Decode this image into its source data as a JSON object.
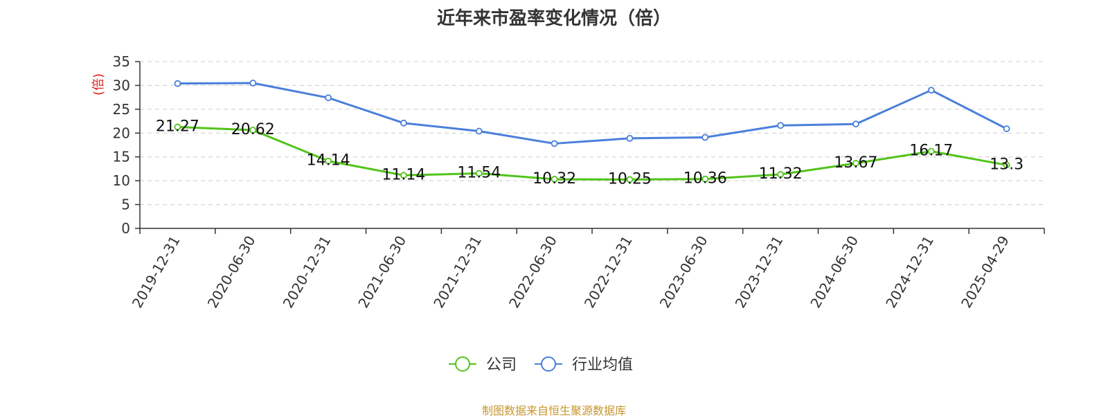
{
  "chart_data": {
    "type": "line",
    "title": "近年来市盈率变化情况（倍）",
    "ylabel": "(倍)",
    "xlabel": "",
    "ylim": [
      0,
      35
    ],
    "yticks": [
      0,
      5,
      10,
      15,
      20,
      25,
      30,
      35
    ],
    "grid": true,
    "legend_position": "bottom",
    "categories": [
      "2019-12-31",
      "2020-06-30",
      "2020-12-31",
      "2021-06-30",
      "2021-12-31",
      "2022-06-30",
      "2022-12-31",
      "2023-06-30",
      "2023-12-31",
      "2024-06-30",
      "2024-12-31",
      "2025-04-29"
    ],
    "series": [
      {
        "name": "公司",
        "color": "#52c41a",
        "values": [
          21.27,
          20.62,
          14.14,
          11.14,
          11.54,
          10.32,
          10.25,
          10.36,
          11.32,
          13.67,
          16.17,
          13.3
        ],
        "labels": [
          "21.27",
          "20.62",
          "14.14",
          "11.14",
          "11.54",
          "10.32",
          "10.25",
          "10.36",
          "11.32",
          "13.67",
          "16.17",
          "13.3"
        ]
      },
      {
        "name": "行业均值",
        "color": "#4a7fdb",
        "values": [
          30.4,
          30.5,
          27.4,
          22.1,
          20.4,
          17.8,
          18.9,
          19.1,
          21.6,
          21.9,
          29.0,
          20.9
        ]
      }
    ]
  },
  "footer": "制图数据来自恒生聚源数据库"
}
